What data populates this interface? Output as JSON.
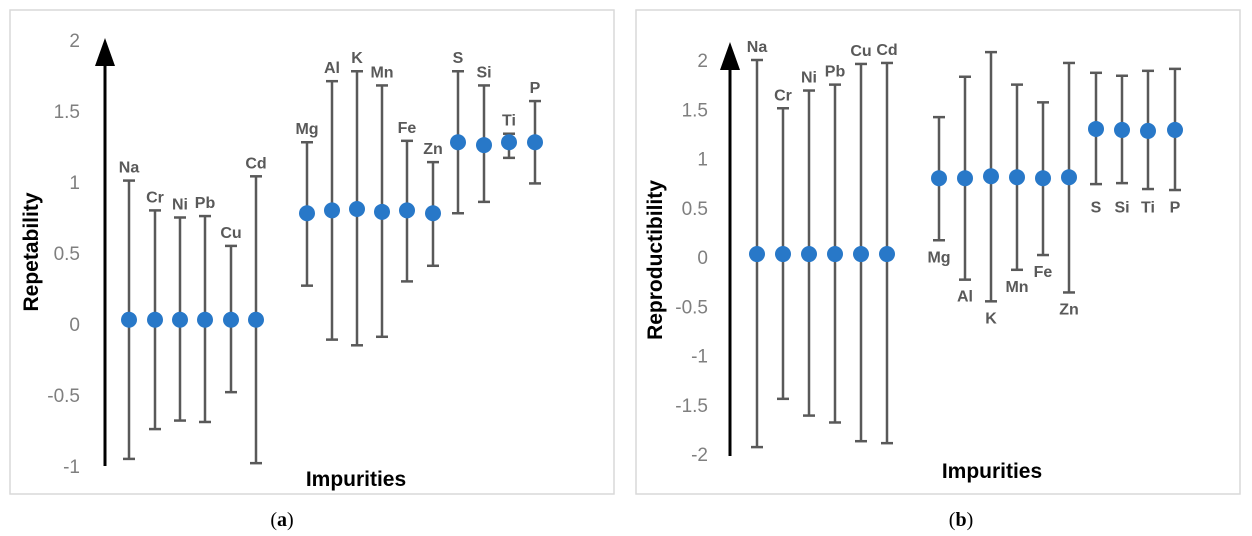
{
  "chart_data": [
    {
      "type": "scatter",
      "caption": "a",
      "ylabel": "Repetability",
      "xlabel": "Impurities",
      "ylim": [
        -1,
        2
      ],
      "yticks": [
        "-1",
        "-0.5",
        "0",
        "0.5",
        "1",
        "1.5",
        "2"
      ],
      "point_color": "#2878c8",
      "errorbar_color": "#595959",
      "categories": [
        "Na",
        "Cr",
        "Ni",
        "Pb",
        "Cu",
        "Cd",
        "Mg",
        "Al",
        "K",
        "Mn",
        "Fe",
        "Zn",
        "S",
        "Si",
        "Ti",
        "P"
      ],
      "values": [
        0.03,
        0.03,
        0.03,
        0.03,
        0.03,
        0.03,
        0.78,
        0.8,
        0.81,
        0.79,
        0.8,
        0.78,
        1.28,
        1.26,
        1.28,
        1.28
      ],
      "upper": [
        1.01,
        0.8,
        0.75,
        0.76,
        0.55,
        1.04,
        1.28,
        1.71,
        1.78,
        1.68,
        1.29,
        1.14,
        1.78,
        1.68,
        1.34,
        1.57
      ],
      "lower": [
        -0.95,
        -0.74,
        -0.68,
        -0.69,
        -0.48,
        -0.98,
        0.27,
        -0.11,
        -0.15,
        -0.09,
        0.3,
        0.41,
        0.78,
        0.86,
        1.17,
        0.99
      ],
      "label_pos": [
        "above",
        "above",
        "above",
        "above",
        "above",
        "above",
        "above",
        "above",
        "above",
        "above",
        "above",
        "above",
        "above",
        "above",
        "above",
        "above"
      ]
    },
    {
      "type": "scatter",
      "caption": "b",
      "ylabel": "Reproductibility",
      "xlabel": "Impurities",
      "ylim": [
        -2,
        2
      ],
      "yticks": [
        "-2",
        "-1.5",
        "-1",
        "-0.5",
        "0",
        "0.5",
        "1",
        "1.5",
        "2"
      ],
      "point_color": "#2878c8",
      "errorbar_color": "#595959",
      "categories": [
        "Na",
        "Cr",
        "Ni",
        "Pb",
        "Cu",
        "Cd",
        "Mg",
        "Al",
        "K",
        "Mn",
        "Fe",
        "Zn",
        "S",
        "Si",
        "Ti",
        "P"
      ],
      "values": [
        0.03,
        0.03,
        0.03,
        0.03,
        0.03,
        0.03,
        0.8,
        0.8,
        0.82,
        0.81,
        0.8,
        0.81,
        1.3,
        1.29,
        1.28,
        1.29
      ],
      "upper": [
        2.0,
        1.51,
        1.69,
        1.75,
        1.96,
        1.97,
        1.42,
        1.83,
        2.08,
        1.75,
        1.57,
        1.97,
        1.87,
        1.84,
        1.89,
        1.91
      ],
      "lower": [
        -1.93,
        -1.44,
        -1.61,
        -1.68,
        -1.87,
        -1.89,
        0.17,
        -0.23,
        -0.45,
        -0.13,
        0.02,
        -0.36,
        0.74,
        0.75,
        0.69,
        0.68
      ],
      "label_pos": [
        "above",
        "above",
        "above",
        "above",
        "above",
        "above",
        "below",
        "below",
        "below",
        "below",
        "below",
        "below",
        "below",
        "below",
        "below",
        "below"
      ]
    }
  ]
}
